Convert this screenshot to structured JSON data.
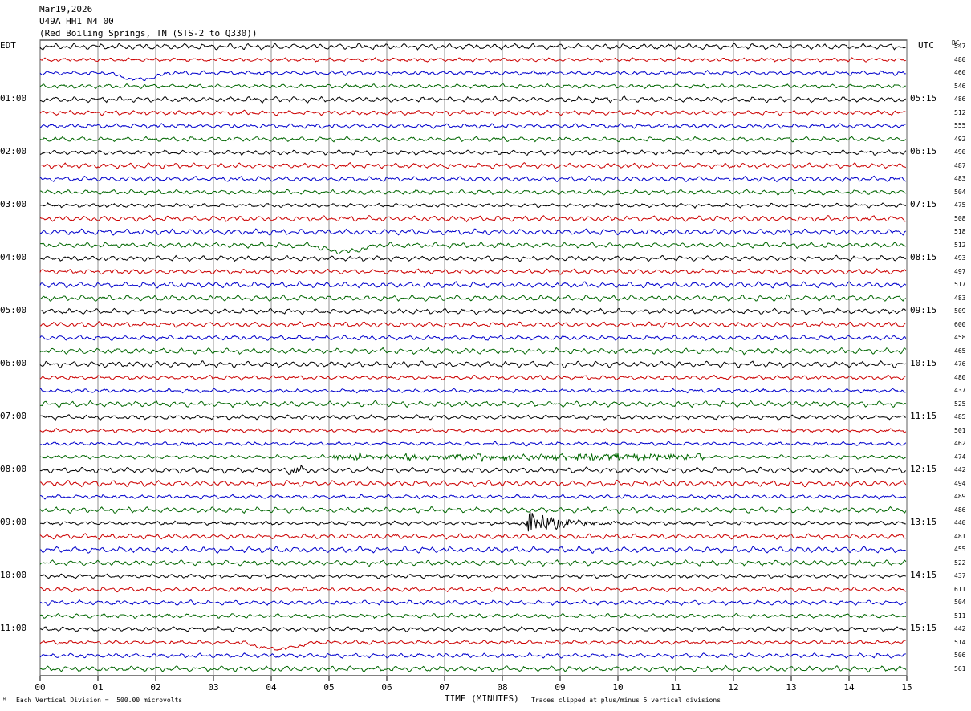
{
  "header": {
    "date": "Mar19,2026",
    "channel": "U49A HH1 N4 00",
    "location": "(Red Boiling Springs, TN (STS-2 to Q330))"
  },
  "labels": {
    "left_zone": "EDT",
    "right_zone": "UTC",
    "dc_label": "DC"
  },
  "footer": {
    "scale_note": "Each Vertical Division =  500.00 microvolts",
    "clip_note": "Traces clipped at plus/minus 5 vertical divisions"
  },
  "chart_data": {
    "type": "line",
    "title": "",
    "xlabel": "TIME (MINUTES)",
    "xlim": [
      0,
      15
    ],
    "x_ticks": [
      "00",
      "01",
      "02",
      "03",
      "04",
      "05",
      "06",
      "07",
      "08",
      "09",
      "10",
      "11",
      "12",
      "13",
      "14",
      "15"
    ],
    "trace_colors": [
      "#000000",
      "#cc0000",
      "#0000cc",
      "#006600"
    ],
    "left_time_labels": [
      {
        "row": 4,
        "label": "01:00"
      },
      {
        "row": 8,
        "label": "02:00"
      },
      {
        "row": 12,
        "label": "03:00"
      },
      {
        "row": 16,
        "label": "04:00"
      },
      {
        "row": 20,
        "label": "05:00"
      },
      {
        "row": 24,
        "label": "06:00"
      },
      {
        "row": 28,
        "label": "07:00"
      },
      {
        "row": 32,
        "label": "08:00"
      },
      {
        "row": 36,
        "label": "09:00"
      },
      {
        "row": 40,
        "label": "10:00"
      },
      {
        "row": 44,
        "label": "11:00"
      }
    ],
    "right_time_labels": [
      {
        "row": 4,
        "label": "05:15"
      },
      {
        "row": 8,
        "label": "06:15"
      },
      {
        "row": 12,
        "label": "07:15"
      },
      {
        "row": 16,
        "label": "08:15"
      },
      {
        "row": 20,
        "label": "09:15"
      },
      {
        "row": 24,
        "label": "10:15"
      },
      {
        "row": 28,
        "label": "11:15"
      },
      {
        "row": 32,
        "label": "12:15"
      },
      {
        "row": 36,
        "label": "13:15"
      },
      {
        "row": 40,
        "label": "14:15"
      },
      {
        "row": 44,
        "label": "15:15"
      }
    ],
    "dc_offsets": [
      "547",
      "480",
      "460",
      "546",
      "486",
      "512",
      "555",
      "492",
      "490",
      "487",
      "483",
      "504",
      "475",
      "508",
      "518",
      "512",
      "493",
      "497",
      "517",
      "483",
      "509",
      "600",
      "458",
      "465",
      "476",
      "480",
      "437",
      "525",
      "485",
      "501",
      "462",
      "474",
      "442",
      "494",
      "489",
      "486",
      "440",
      "481",
      "455",
      "522",
      "437",
      "611",
      "504",
      "511",
      "442",
      "514",
      "506",
      "561"
    ],
    "events": [
      {
        "row": 2,
        "start_min": 1.2,
        "end_min": 2.2,
        "type": "slow-dip"
      },
      {
        "row": 15,
        "start_min": 4.7,
        "end_min": 5.8,
        "type": "slow-dip"
      },
      {
        "row": 31,
        "start_min": 5.0,
        "end_min": 11.5,
        "type": "noise-burst"
      },
      {
        "row": 32,
        "start_min": 4.2,
        "end_min": 4.6,
        "type": "local-event"
      },
      {
        "row": 36,
        "start_min": 8.3,
        "end_min": 10.0,
        "type": "earthquake"
      },
      {
        "row": 45,
        "start_min": 3.5,
        "end_min": 4.7,
        "type": "slow-dip"
      }
    ]
  }
}
